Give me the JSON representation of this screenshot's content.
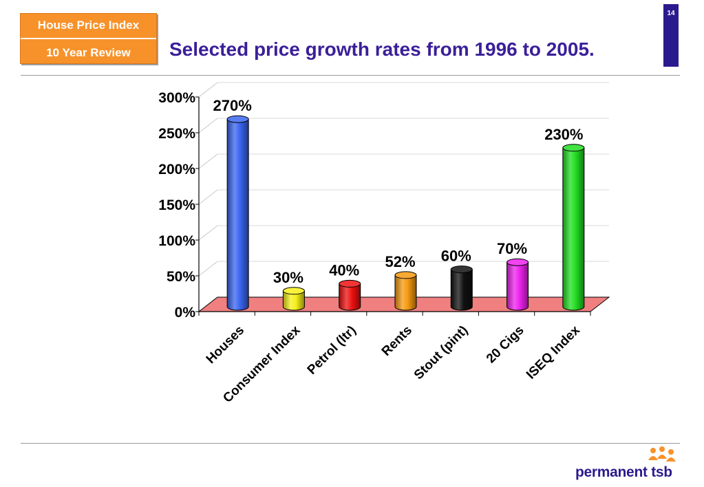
{
  "header": {
    "badge_line1": "House Price Index",
    "badge_line2": "10 Year Review",
    "title": "Selected price growth rates from 1996 to 2005.",
    "page_number": "14"
  },
  "brand": {
    "logo_text": "permanent tsb",
    "primary_color": "#2b1a8e",
    "accent_color": "#f7922a"
  },
  "chart_data": {
    "type": "bar",
    "title": "Selected price growth rates from 1996 to 2005.",
    "xlabel": "",
    "ylabel": "",
    "ylim": [
      0,
      300
    ],
    "yticks": [
      "0%",
      "50%",
      "100%",
      "150%",
      "200%",
      "250%",
      "300%"
    ],
    "grid": true,
    "legend": "none",
    "categories": [
      "Houses",
      "Consumer Index",
      "Petrol (ltr)",
      "Rents",
      "Stout (pint)",
      "20 Cigs",
      "ISEQ Index"
    ],
    "values": [
      270,
      30,
      40,
      52,
      60,
      70,
      230
    ],
    "data_labels": [
      "270%",
      "30%",
      "40%",
      "52%",
      "60%",
      "70%",
      "230%"
    ],
    "colors": [
      "#3a66f0",
      "#f5f01a",
      "#ee1111",
      "#f59a10",
      "#111111",
      "#ee22ee",
      "#22dd22"
    ],
    "floor_color": "#f08080"
  }
}
